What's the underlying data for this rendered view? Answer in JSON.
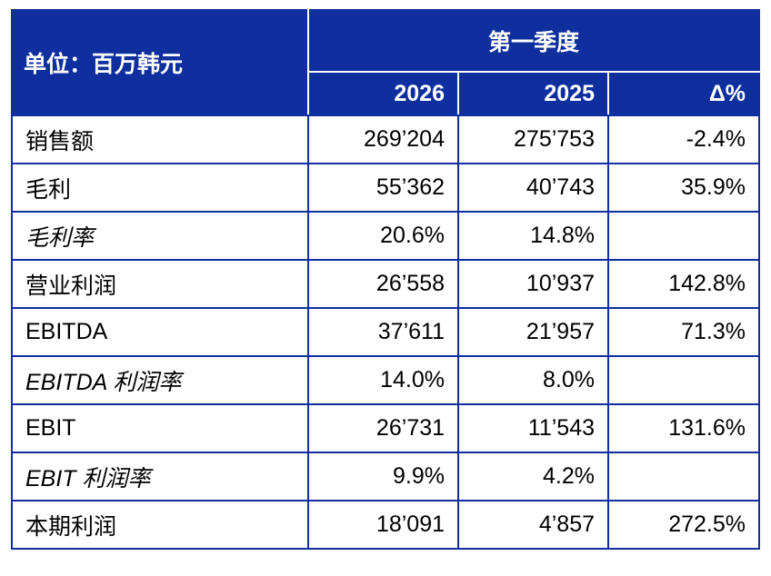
{
  "table": {
    "unit_label": "单位：百万韩元",
    "period_label": "第一季度",
    "columns": [
      "2026",
      "2025",
      "Δ%"
    ],
    "rows": [
      {
        "label": "销售额",
        "v2026": "269’204",
        "v2025": "275’753",
        "delta": "-2.4%",
        "italic": false
      },
      {
        "label": "毛利",
        "v2026": "55’362",
        "v2025": "40’743",
        "delta": "35.9%",
        "italic": false
      },
      {
        "label": "毛利率",
        "v2026": "20.6%",
        "v2025": "14.8%",
        "delta": "",
        "italic": true
      },
      {
        "label": "营业利润",
        "v2026": "26’558",
        "v2025": "10’937",
        "delta": "142.8%",
        "italic": false
      },
      {
        "label": "EBITDA",
        "v2026": "37’611",
        "v2025": "21’957",
        "delta": "71.3%",
        "italic": false
      },
      {
        "label": "EBITDA 利润率",
        "v2026": "14.0%",
        "v2025": "8.0%",
        "delta": "",
        "italic": true
      },
      {
        "label": "EBIT",
        "v2026": "26’731",
        "v2025": "11’543",
        "delta": "131.6%",
        "italic": false
      },
      {
        "label": "EBIT 利润率",
        "v2026": "9.9%",
        "v2025": "4.2%",
        "delta": "",
        "italic": true
      },
      {
        "label": "本期利润",
        "v2026": "18’091",
        "v2025": "4’857",
        "delta": "272.5%",
        "italic": false
      }
    ]
  },
  "colors": {
    "header_bg": "#0f2f9e",
    "header_text": "#ffffff",
    "grid_line": "#0f2f9e"
  }
}
